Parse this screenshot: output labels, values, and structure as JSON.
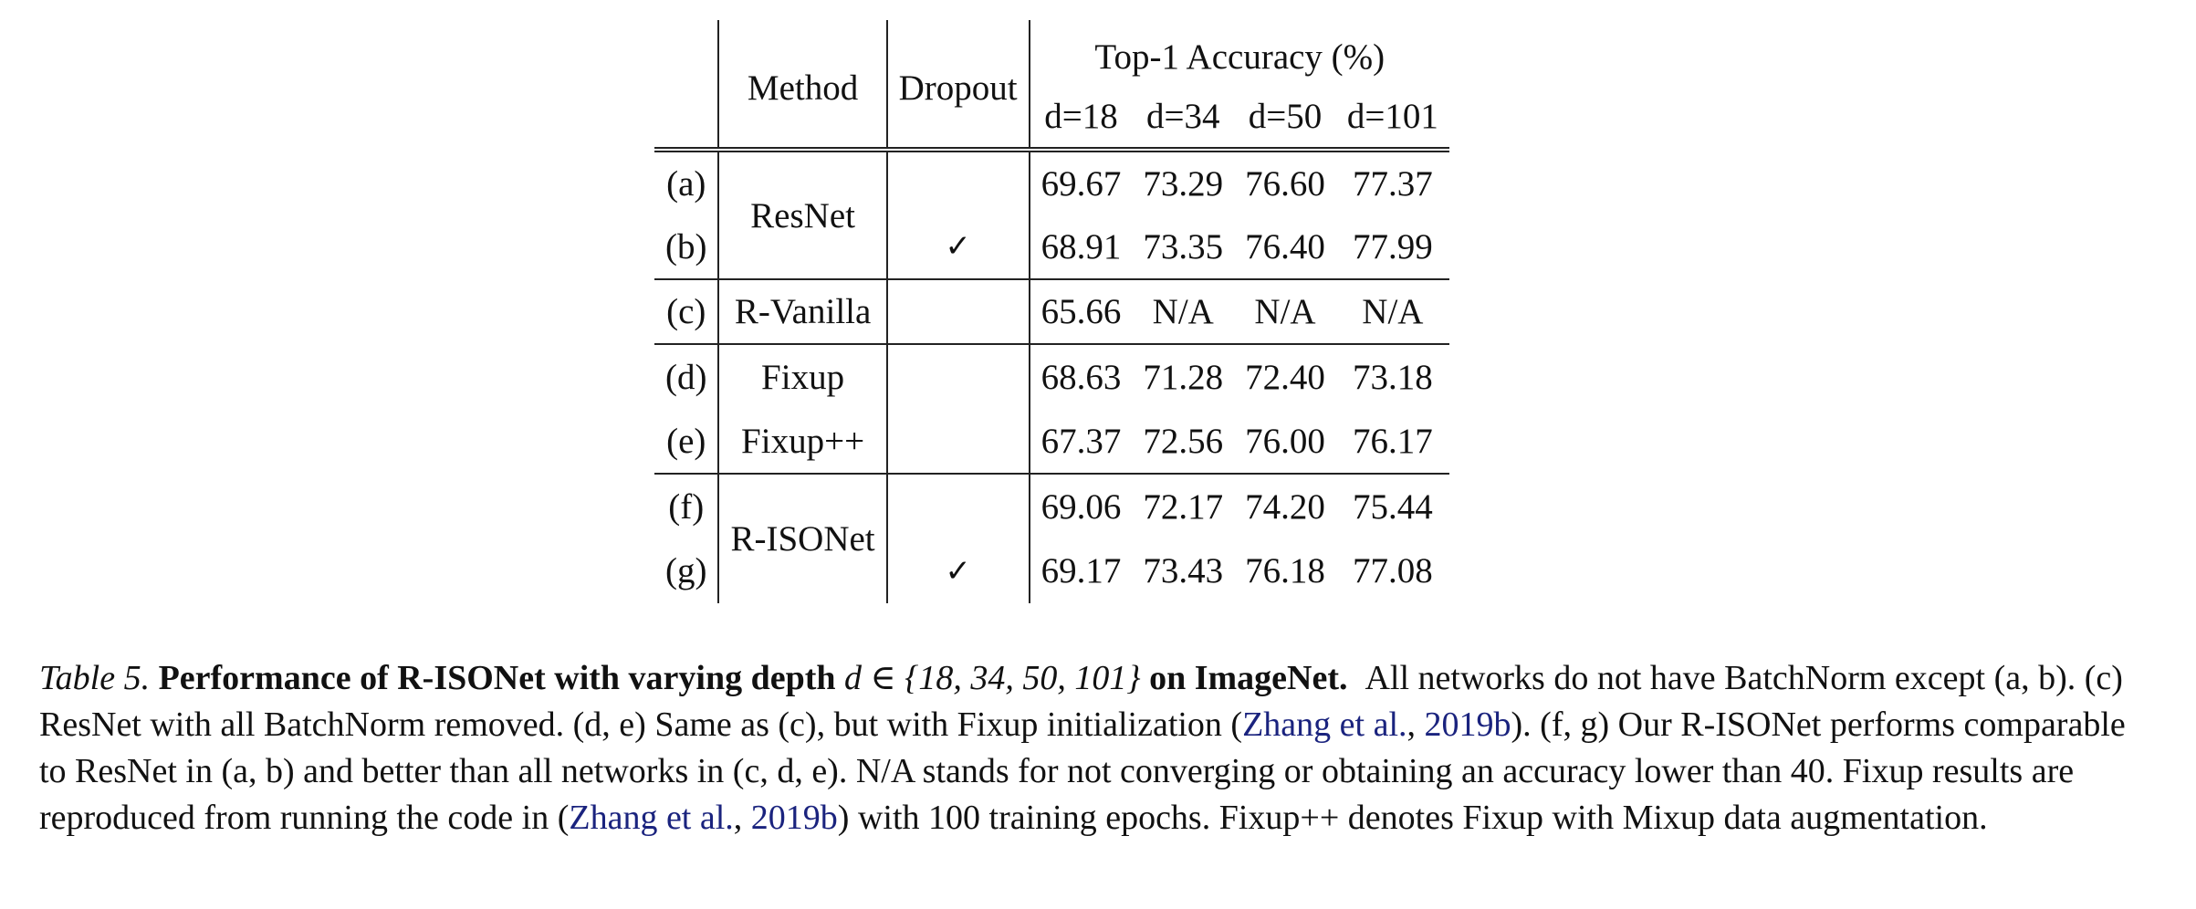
{
  "table": {
    "headers": {
      "method": "Method",
      "dropout": "Dropout",
      "accuracy_group": "Top-1 Accuracy (%)",
      "depths": [
        "d=18",
        "d=34",
        "d=50",
        "d=101"
      ]
    },
    "rows": [
      {
        "label": "(a)",
        "method": "ResNet",
        "dropout": "",
        "values": [
          "69.67",
          "73.29",
          "76.60",
          "77.37"
        ]
      },
      {
        "label": "(b)",
        "method": "",
        "dropout": "✓",
        "values": [
          "68.91",
          "73.35",
          "76.40",
          "77.99"
        ]
      },
      {
        "label": "(c)",
        "method": "R-Vanilla",
        "dropout": "",
        "values": [
          "65.66",
          "N/A",
          "N/A",
          "N/A"
        ]
      },
      {
        "label": "(d)",
        "method": "Fixup",
        "dropout": "",
        "values": [
          "68.63",
          "71.28",
          "72.40",
          "73.18"
        ]
      },
      {
        "label": "(e)",
        "method": "Fixup++",
        "dropout": "",
        "values": [
          "67.37",
          "72.56",
          "76.00",
          "76.17"
        ]
      },
      {
        "label": "(f)",
        "method": "R-ISONet",
        "dropout": "",
        "values": [
          "69.06",
          "72.17",
          "74.20",
          "75.44"
        ]
      },
      {
        "label": "(g)",
        "method": "",
        "dropout": "✓",
        "values": [
          "69.17",
          "73.43",
          "76.18",
          "77.08"
        ]
      }
    ]
  },
  "caption": {
    "table_label": "Table 5.",
    "title_bold_1": "Performance of R-ISONet with varying depth",
    "title_math": "d ∈ {18, 34, 50, 101}",
    "title_bold_2": "on ImageNet.",
    "text_1": "All networks do not have BatchNorm except (a, b). (c) ResNet with all BatchNorm removed. (d, e) Same as (c), but with Fixup initialization (",
    "cite_1_author": "Zhang et al.",
    "cite_sep_1": ", ",
    "cite_1_year": "2019b",
    "text_2": "). (f, g) Our R-ISONet performs comparable to ResNet in (a, b) and better than all networks in (c, d, e). N/A stands for not converging or obtaining an accuracy lower than 40. Fixup results are reproduced from running the code in (",
    "cite_2_author": "Zhang et al.",
    "cite_sep_2": ", ",
    "cite_2_year": "2019b",
    "text_3": ") with 100 training epochs. Fixup++ denotes Fixup with Mixup data augmentation.",
    "link_color": "#1a237e"
  }
}
